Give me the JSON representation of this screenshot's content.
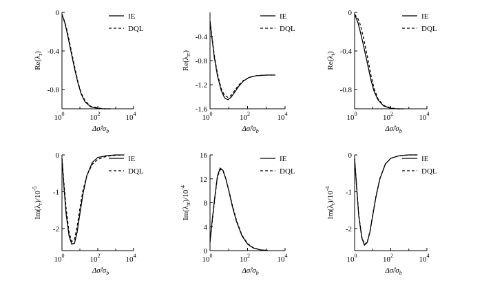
{
  "chart_data": [
    {
      "type": "line",
      "panel": "top-left",
      "ylabel_base": "Re(λ",
      "ylabel_sub": "r",
      "ylabel_suffix": ")",
      "xlabel": "Δσ̂/σ",
      "xlabel_sub": "b",
      "xscale": "log",
      "xlim": [
        1,
        10000
      ],
      "xticks": [
        "10",
        "10",
        "10"
      ],
      "xtick_exps": [
        "0",
        "2",
        "4"
      ],
      "ylim": [
        -1.0,
        0
      ],
      "yticks": [
        0,
        -0.4,
        -0.8
      ],
      "ytick_labels": [
        "0",
        "-0.4",
        "-0.8"
      ],
      "legend": [
        "IE",
        "DQL"
      ],
      "legend_position": "top-right",
      "series": [
        {
          "name": "IE",
          "x": [
            1,
            1.5,
            2,
            3,
            5,
            8,
            12,
            20,
            40,
            100,
            200,
            500
          ],
          "y": [
            -0.02,
            -0.12,
            -0.22,
            -0.38,
            -0.58,
            -0.74,
            -0.85,
            -0.93,
            -0.98,
            -0.995,
            -1.0,
            -1.0
          ]
        },
        {
          "name": "DQL",
          "x": [
            1,
            1.5,
            2,
            3,
            5,
            8,
            12,
            20,
            40,
            100,
            200,
            500
          ],
          "y": [
            -0.02,
            -0.11,
            -0.2,
            -0.36,
            -0.56,
            -0.73,
            -0.84,
            -0.92,
            -0.975,
            -0.99,
            -1.0,
            -1.0
          ]
        }
      ]
    },
    {
      "type": "line",
      "panel": "top-middle",
      "ylabel_base": "Re(λ",
      "ylabel_sub": "rr",
      "ylabel_suffix": ")",
      "xlabel": "Δσ̂/σ",
      "xlabel_sub": "b",
      "xscale": "log",
      "xlim": [
        1,
        10000
      ],
      "xticks": [
        "10",
        "10",
        "10"
      ],
      "xtick_exps": [
        "0",
        "2",
        "4"
      ],
      "ylim": [
        -1.6,
        0
      ],
      "yticks": [
        -0.4,
        -0.8,
        -1.2,
        -1.6
      ],
      "ytick_labels": [
        "-0.4",
        "-0.8",
        "-1.2",
        "-1.6"
      ],
      "legend": [
        "IE",
        "DQL"
      ],
      "legend_position": "top-right",
      "series": [
        {
          "name": "IE",
          "x": [
            1,
            1.3,
            1.7,
            2.5,
            4,
            6,
            9,
            13,
            20,
            35,
            60,
            120,
            300,
            1000,
            3000
          ],
          "y": [
            -0.15,
            -0.45,
            -0.75,
            -1.05,
            -1.3,
            -1.42,
            -1.45,
            -1.41,
            -1.33,
            -1.22,
            -1.14,
            -1.08,
            -1.05,
            -1.04,
            -1.04
          ]
        },
        {
          "name": "DQL",
          "x": [
            1,
            1.3,
            1.7,
            2.5,
            4,
            6,
            9,
            13,
            20,
            35,
            60,
            120,
            300,
            1000,
            3000
          ],
          "y": [
            -0.15,
            -0.43,
            -0.72,
            -1.02,
            -1.27,
            -1.38,
            -1.41,
            -1.38,
            -1.3,
            -1.2,
            -1.13,
            -1.08,
            -1.05,
            -1.04,
            -1.04
          ]
        }
      ]
    },
    {
      "type": "line",
      "panel": "top-right",
      "ylabel_base": "Re(λ",
      "ylabel_sub": "t",
      "ylabel_suffix": ")",
      "xlabel": "Δσ̂/σ",
      "xlabel_sub": "b",
      "xscale": "log",
      "xlim": [
        1,
        10000
      ],
      "xticks": [
        "10",
        "10",
        "10"
      ],
      "xtick_exps": [
        "0",
        "2",
        "4"
      ],
      "ylim": [
        -1.0,
        0
      ],
      "yticks": [
        0,
        -0.4,
        -0.8
      ],
      "ytick_labels": [
        "0",
        "-0.4",
        "-0.8"
      ],
      "legend": [
        "IE",
        "DQL"
      ],
      "legend_position": "top-right",
      "series": [
        {
          "name": "IE",
          "x": [
            1,
            1.5,
            2,
            3,
            5,
            8,
            12,
            20,
            40,
            100,
            200,
            500
          ],
          "y": [
            -0.02,
            -0.1,
            -0.19,
            -0.33,
            -0.52,
            -0.7,
            -0.82,
            -0.91,
            -0.97,
            -0.995,
            -1.0,
            -1.0
          ]
        },
        {
          "name": "DQL",
          "x": [
            1,
            1.5,
            2,
            3,
            5,
            8,
            12,
            20,
            40,
            100,
            200,
            500
          ],
          "y": [
            -0.02,
            -0.06,
            -0.12,
            -0.25,
            -0.45,
            -0.65,
            -0.79,
            -0.9,
            -0.965,
            -0.99,
            -1.0,
            -1.0
          ]
        }
      ]
    },
    {
      "type": "line",
      "panel": "bottom-left",
      "ylabel_base": "Im(λ",
      "ylabel_sub": "r",
      "ylabel_suffix": ")/10",
      "ylabel_exp": "-5",
      "xlabel": "Δσ̂/σ",
      "xlabel_sub": "b",
      "xscale": "log",
      "xlim": [
        1,
        10000
      ],
      "xticks": [
        "10",
        "10",
        "10"
      ],
      "xtick_exps": [
        "0",
        "2",
        "4"
      ],
      "ylim": [
        -2.6,
        0
      ],
      "yticks": [
        0,
        -1,
        -2
      ],
      "ytick_labels": [
        "0",
        "-1",
        "-2"
      ],
      "legend": [
        "IE",
        "DQL"
      ],
      "legend_position": "top-right",
      "series": [
        {
          "name": "IE",
          "x": [
            1,
            1.3,
            1.7,
            2.5,
            3.5,
            5,
            7,
            10,
            15,
            25,
            50,
            100,
            300,
            1000,
            3000
          ],
          "y": [
            -0.1,
            -0.9,
            -1.6,
            -2.2,
            -2.42,
            -2.4,
            -2.1,
            -1.6,
            -1.05,
            -0.55,
            -0.2,
            -0.07,
            -0.02,
            0,
            0
          ]
        },
        {
          "name": "DQL",
          "x": [
            1,
            1.3,
            1.7,
            2.5,
            3.5,
            5,
            7,
            10,
            15,
            25,
            50,
            100,
            300,
            1000,
            3000
          ],
          "y": [
            -0.1,
            -0.8,
            -1.45,
            -2.1,
            -2.35,
            -2.3,
            -1.95,
            -1.45,
            -0.95,
            -0.55,
            -0.25,
            -0.12,
            -0.04,
            -0.01,
            0
          ]
        }
      ]
    },
    {
      "type": "line",
      "panel": "bottom-middle",
      "ylabel_base": "Im(λ",
      "ylabel_sub": "rr",
      "ylabel_suffix": ")/10",
      "ylabel_exp": "-4",
      "xlabel": "Δσ̂/σ",
      "xlabel_sub": "b",
      "xscale": "log",
      "xlim": [
        1,
        10000
      ],
      "xticks": [
        "10",
        "10",
        "10"
      ],
      "xtick_exps": [
        "0",
        "2",
        "4"
      ],
      "ylim": [
        0,
        16
      ],
      "yticks": [
        0,
        4,
        8,
        12,
        16
      ],
      "ytick_labels": [
        "0",
        "4",
        "8",
        "12",
        "16"
      ],
      "legend": [
        "IE",
        "DQL"
      ],
      "legend_position": "top-right",
      "series": [
        {
          "name": "IE",
          "x": [
            1,
            1.3,
            1.8,
            2.5,
            3.5,
            5,
            7,
            10,
            15,
            25,
            50,
            100,
            200,
            500,
            1200
          ],
          "y": [
            1.5,
            5,
            9,
            12.5,
            13.8,
            13.4,
            12,
            10,
            7.6,
            5,
            2.5,
            1.1,
            0.45,
            0.12,
            0.05
          ]
        },
        {
          "name": "DQL",
          "x": [
            1,
            1.3,
            1.8,
            2.5,
            3.5,
            5,
            7,
            10,
            15,
            25,
            50,
            100,
            200,
            500,
            1200
          ],
          "y": [
            1.4,
            4.8,
            8.8,
            12.3,
            13.6,
            13.3,
            12,
            10.1,
            7.8,
            5.2,
            2.6,
            1.2,
            0.5,
            0.13,
            0.05
          ]
        }
      ]
    },
    {
      "type": "line",
      "panel": "bottom-right",
      "ylabel_base": "Im(λ",
      "ylabel_sub": "t",
      "ylabel_suffix": ")/10",
      "ylabel_exp": "-4",
      "xlabel": "Δσ̂/σ",
      "xlabel_sub": "b",
      "xscale": "log",
      "xlim": [
        1,
        10000
      ],
      "xticks": [
        "10",
        "10",
        "10"
      ],
      "xtick_exps": [
        "0",
        "2",
        "4"
      ],
      "ylim": [
        -2.6,
        0
      ],
      "yticks": [
        0,
        -1,
        -2
      ],
      "ytick_labels": [
        "0",
        "-1",
        "-2"
      ],
      "legend": [
        "IE",
        "DQL"
      ],
      "legend_position": "top-right",
      "series": [
        {
          "name": "IE",
          "x": [
            1,
            1.3,
            1.7,
            2.5,
            3.5,
            5,
            7,
            10,
            15,
            25,
            50,
            100,
            300,
            1000,
            3000
          ],
          "y": [
            -0.1,
            -0.9,
            -1.65,
            -2.25,
            -2.45,
            -2.38,
            -2.1,
            -1.65,
            -1.15,
            -0.65,
            -0.25,
            -0.09,
            -0.02,
            0,
            0
          ]
        },
        {
          "name": "DQL",
          "x": [
            1,
            1.3,
            1.7,
            2.5,
            3.5,
            5,
            7,
            10,
            15,
            25,
            50,
            100,
            300,
            1000,
            3000
          ],
          "y": [
            -0.1,
            -0.88,
            -1.62,
            -2.22,
            -2.43,
            -2.37,
            -2.08,
            -1.63,
            -1.13,
            -0.64,
            -0.25,
            -0.09,
            -0.02,
            0,
            0
          ]
        }
      ]
    }
  ]
}
